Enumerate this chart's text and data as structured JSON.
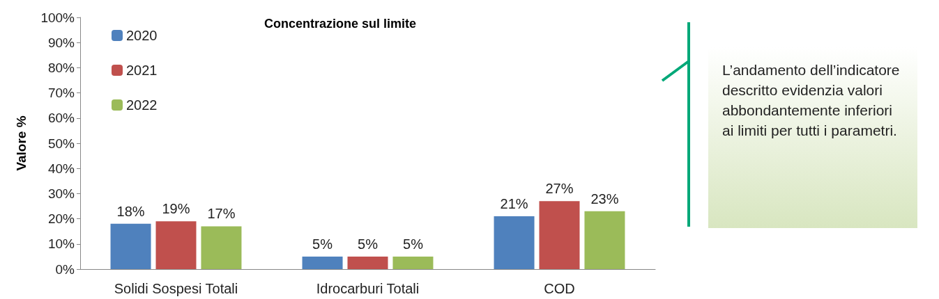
{
  "chart_data": {
    "type": "bar",
    "title": "Concentrazione sul limite",
    "ylabel": "Valore %",
    "categories": [
      "Solidi Sospesi Totali",
      "Idrocarburi Totali",
      "COD"
    ],
    "series": [
      {
        "name": "2020",
        "color": "#4f81bd",
        "values": [
          18,
          5,
          21
        ],
        "value_labels": [
          "18%",
          "5%",
          "21%"
        ]
      },
      {
        "name": "2021",
        "color": "#c0504d",
        "values": [
          19,
          5,
          27
        ],
        "value_labels": [
          "19%",
          "5%",
          "27%"
        ]
      },
      {
        "name": "2022",
        "color": "#9bbb59",
        "values": [
          17,
          5,
          23
        ],
        "value_labels": [
          "17%",
          "5%",
          "23%"
        ]
      }
    ],
    "ylim": [
      0,
      100
    ],
    "yticks": [
      {
        "value": 0,
        "label": "0%"
      },
      {
        "value": 10,
        "label": "10%"
      },
      {
        "value": 20,
        "label": "20%"
      },
      {
        "value": 30,
        "label": "30%"
      },
      {
        "value": 40,
        "label": "40%"
      },
      {
        "value": 50,
        "label": "50%"
      },
      {
        "value": 60,
        "label": "60%"
      },
      {
        "value": 70,
        "label": "70%"
      },
      {
        "value": 80,
        "label": "80%"
      },
      {
        "value": 90,
        "label": "90%"
      },
      {
        "value": 100,
        "label": "100%"
      }
    ],
    "grid": false,
    "legend": "top left",
    "annotations": [
      "L’andamento dell’indicatore descritto evidenzia valori abbondantemente inferiori ai limiti per tutti i parametri."
    ]
  }
}
